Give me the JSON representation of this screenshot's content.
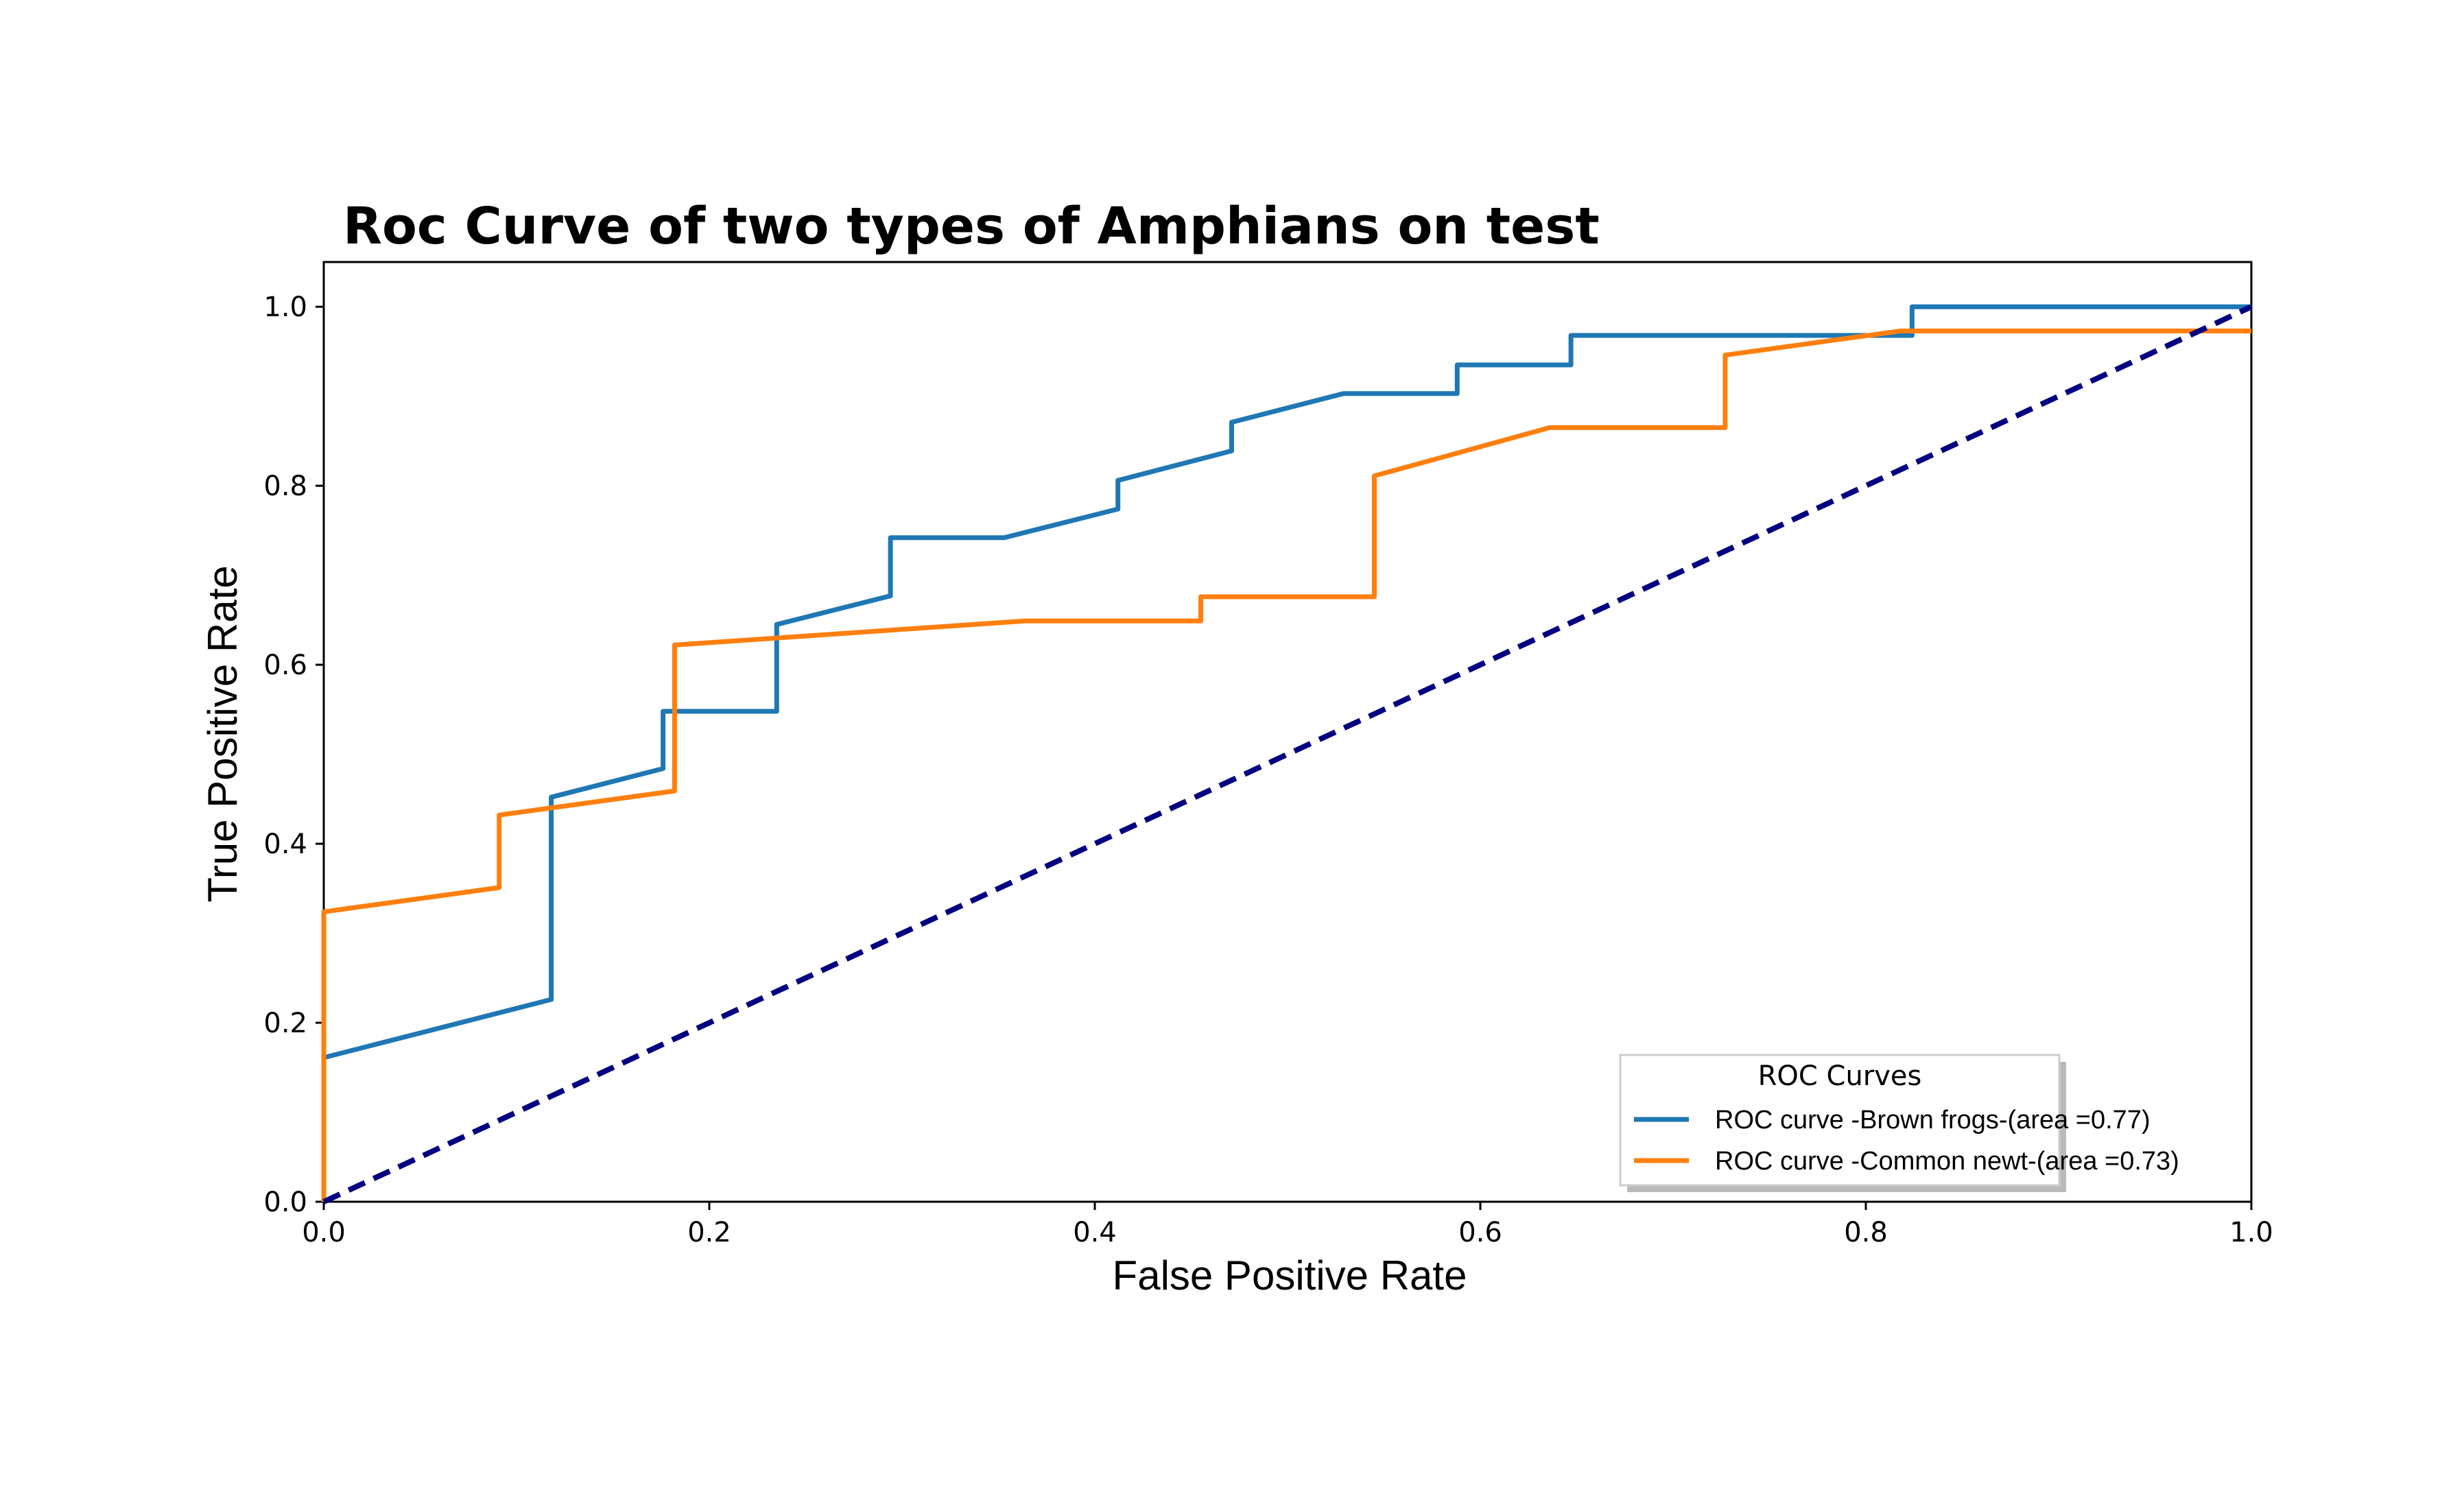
{
  "chart_data": {
    "type": "line",
    "title": "Roc Curve of two types of Amphians on test",
    "xlabel": "False Positive Rate",
    "ylabel": "True Positive Rate",
    "xlim": [
      0.0,
      1.0
    ],
    "ylim": [
      0.0,
      1.05
    ],
    "xticks": [
      "0.0",
      "0.2",
      "0.4",
      "0.6",
      "0.8",
      "1.0"
    ],
    "yticks": [
      "0.0",
      "0.2",
      "0.4",
      "0.6",
      "0.8",
      "1.0"
    ],
    "grid": false,
    "legend": {
      "title": "ROC Curves",
      "position": "lower-right"
    },
    "series": [
      {
        "name": "ROC curve -Brown frogs-(area =0.77)",
        "color": "#1f77b4",
        "style": "solid",
        "points": [
          [
            0.0,
            0.0
          ],
          [
            0.0,
            0.161
          ],
          [
            0.118,
            0.226
          ],
          [
            0.118,
            0.452
          ],
          [
            0.176,
            0.484
          ],
          [
            0.176,
            0.548
          ],
          [
            0.235,
            0.548
          ],
          [
            0.235,
            0.645
          ],
          [
            0.294,
            0.677
          ],
          [
            0.294,
            0.742
          ],
          [
            0.353,
            0.742
          ],
          [
            0.412,
            0.774
          ],
          [
            0.412,
            0.806
          ],
          [
            0.471,
            0.839
          ],
          [
            0.471,
            0.871
          ],
          [
            0.529,
            0.903
          ],
          [
            0.588,
            0.903
          ],
          [
            0.588,
            0.935
          ],
          [
            0.647,
            0.935
          ],
          [
            0.647,
            0.968
          ],
          [
            0.824,
            0.968
          ],
          [
            0.824,
            1.0
          ],
          [
            1.0,
            1.0
          ]
        ]
      },
      {
        "name": "ROC curve -Common newt-(area =0.73)",
        "color": "#ff7f0e",
        "style": "solid",
        "points": [
          [
            0.0,
            0.0
          ],
          [
            0.0,
            0.324
          ],
          [
            0.091,
            0.351
          ],
          [
            0.091,
            0.432
          ],
          [
            0.182,
            0.459
          ],
          [
            0.182,
            0.622
          ],
          [
            0.364,
            0.649
          ],
          [
            0.455,
            0.649
          ],
          [
            0.455,
            0.676
          ],
          [
            0.545,
            0.676
          ],
          [
            0.545,
            0.811
          ],
          [
            0.636,
            0.865
          ],
          [
            0.727,
            0.865
          ],
          [
            0.727,
            0.946
          ],
          [
            0.818,
            0.973
          ],
          [
            1.0,
            0.973
          ]
        ]
      },
      {
        "name": "",
        "color": "#000080",
        "style": "dashed",
        "points": [
          [
            0.0,
            0.0
          ],
          [
            1.0,
            1.0
          ]
        ]
      }
    ]
  }
}
